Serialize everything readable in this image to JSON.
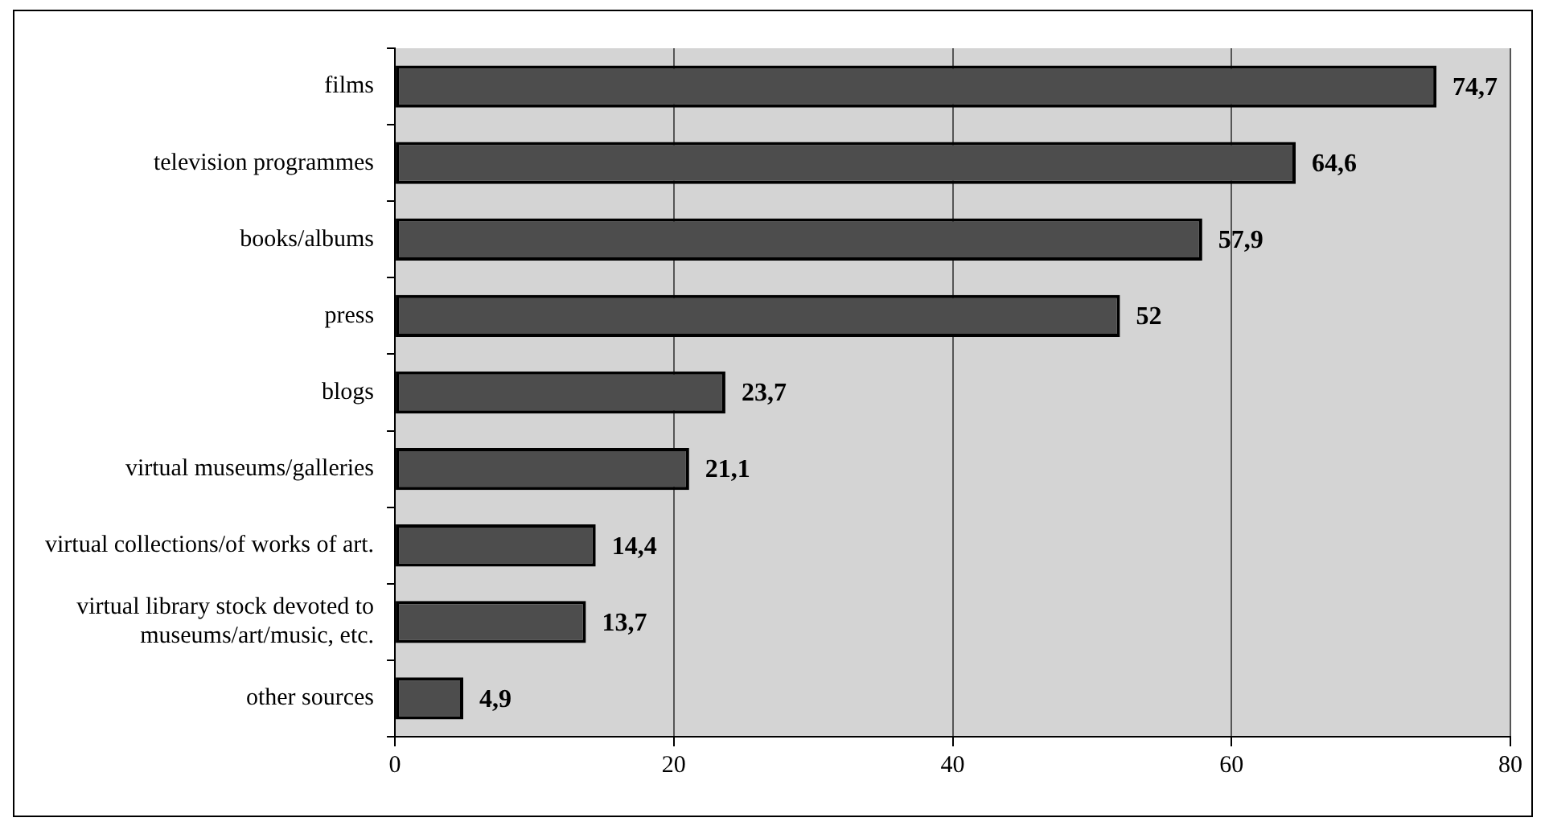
{
  "chart_data": {
    "type": "bar",
    "orientation": "horizontal",
    "categories": [
      "films",
      "television programmes",
      "books/albums",
      "press",
      "blogs",
      "virtual museums/galleries",
      "virtual collections/of works of art.",
      "virtual library stock devoted to museums/art/music, etc.",
      "other sources"
    ],
    "values": [
      74.7,
      64.6,
      57.9,
      52,
      23.7,
      21.1,
      14.4,
      13.7,
      4.9
    ],
    "value_labels": [
      "74,7",
      "64,6",
      "57,9",
      "52",
      "23,7",
      "21,1",
      "14,4",
      "13,7",
      "4,9"
    ],
    "color": "#4d4d4d",
    "xlim": [
      0,
      80
    ],
    "xticks": [
      0,
      20,
      40,
      60,
      80
    ],
    "grid": "x",
    "legend": false
  }
}
